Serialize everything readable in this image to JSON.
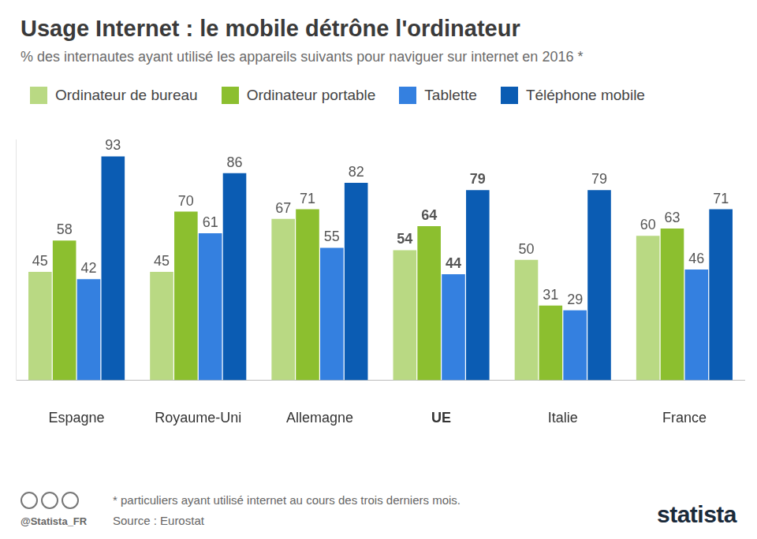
{
  "chart_data": {
    "type": "bar",
    "title": "Usage Internet : le mobile détrône l'ordinateur",
    "subtitle": "% des internautes ayant utilisé les appareils suivants pour naviguer sur internet en 2016 *",
    "categories": [
      "Espagne",
      "Royaume-Uni",
      "Allemagne",
      "UE",
      "Italie",
      "France"
    ],
    "series": [
      {
        "name": "Ordinateur de bureau",
        "color": "#b9d983",
        "values": [
          45,
          45,
          67,
          54,
          50,
          60
        ]
      },
      {
        "name": "Ordinateur portable",
        "color": "#8cbf2f",
        "values": [
          58,
          70,
          71,
          64,
          31,
          63
        ]
      },
      {
        "name": "Tablette",
        "color": "#3480e0",
        "values": [
          42,
          61,
          55,
          44,
          29,
          46
        ]
      },
      {
        "name": "Téléphone mobile",
        "color": "#0b5cb3",
        "values": [
          93,
          86,
          82,
          79,
          79,
          71
        ]
      }
    ],
    "ylim": [
      0,
      100
    ],
    "tick_labels": "x",
    "grid": false,
    "data_labels": true,
    "footnote": "* particuliers ayant utilisé internet au cours des trois derniers mois.",
    "source": "Source : Eurostat",
    "credit": "@Statista_FR",
    "brand": "statista"
  }
}
